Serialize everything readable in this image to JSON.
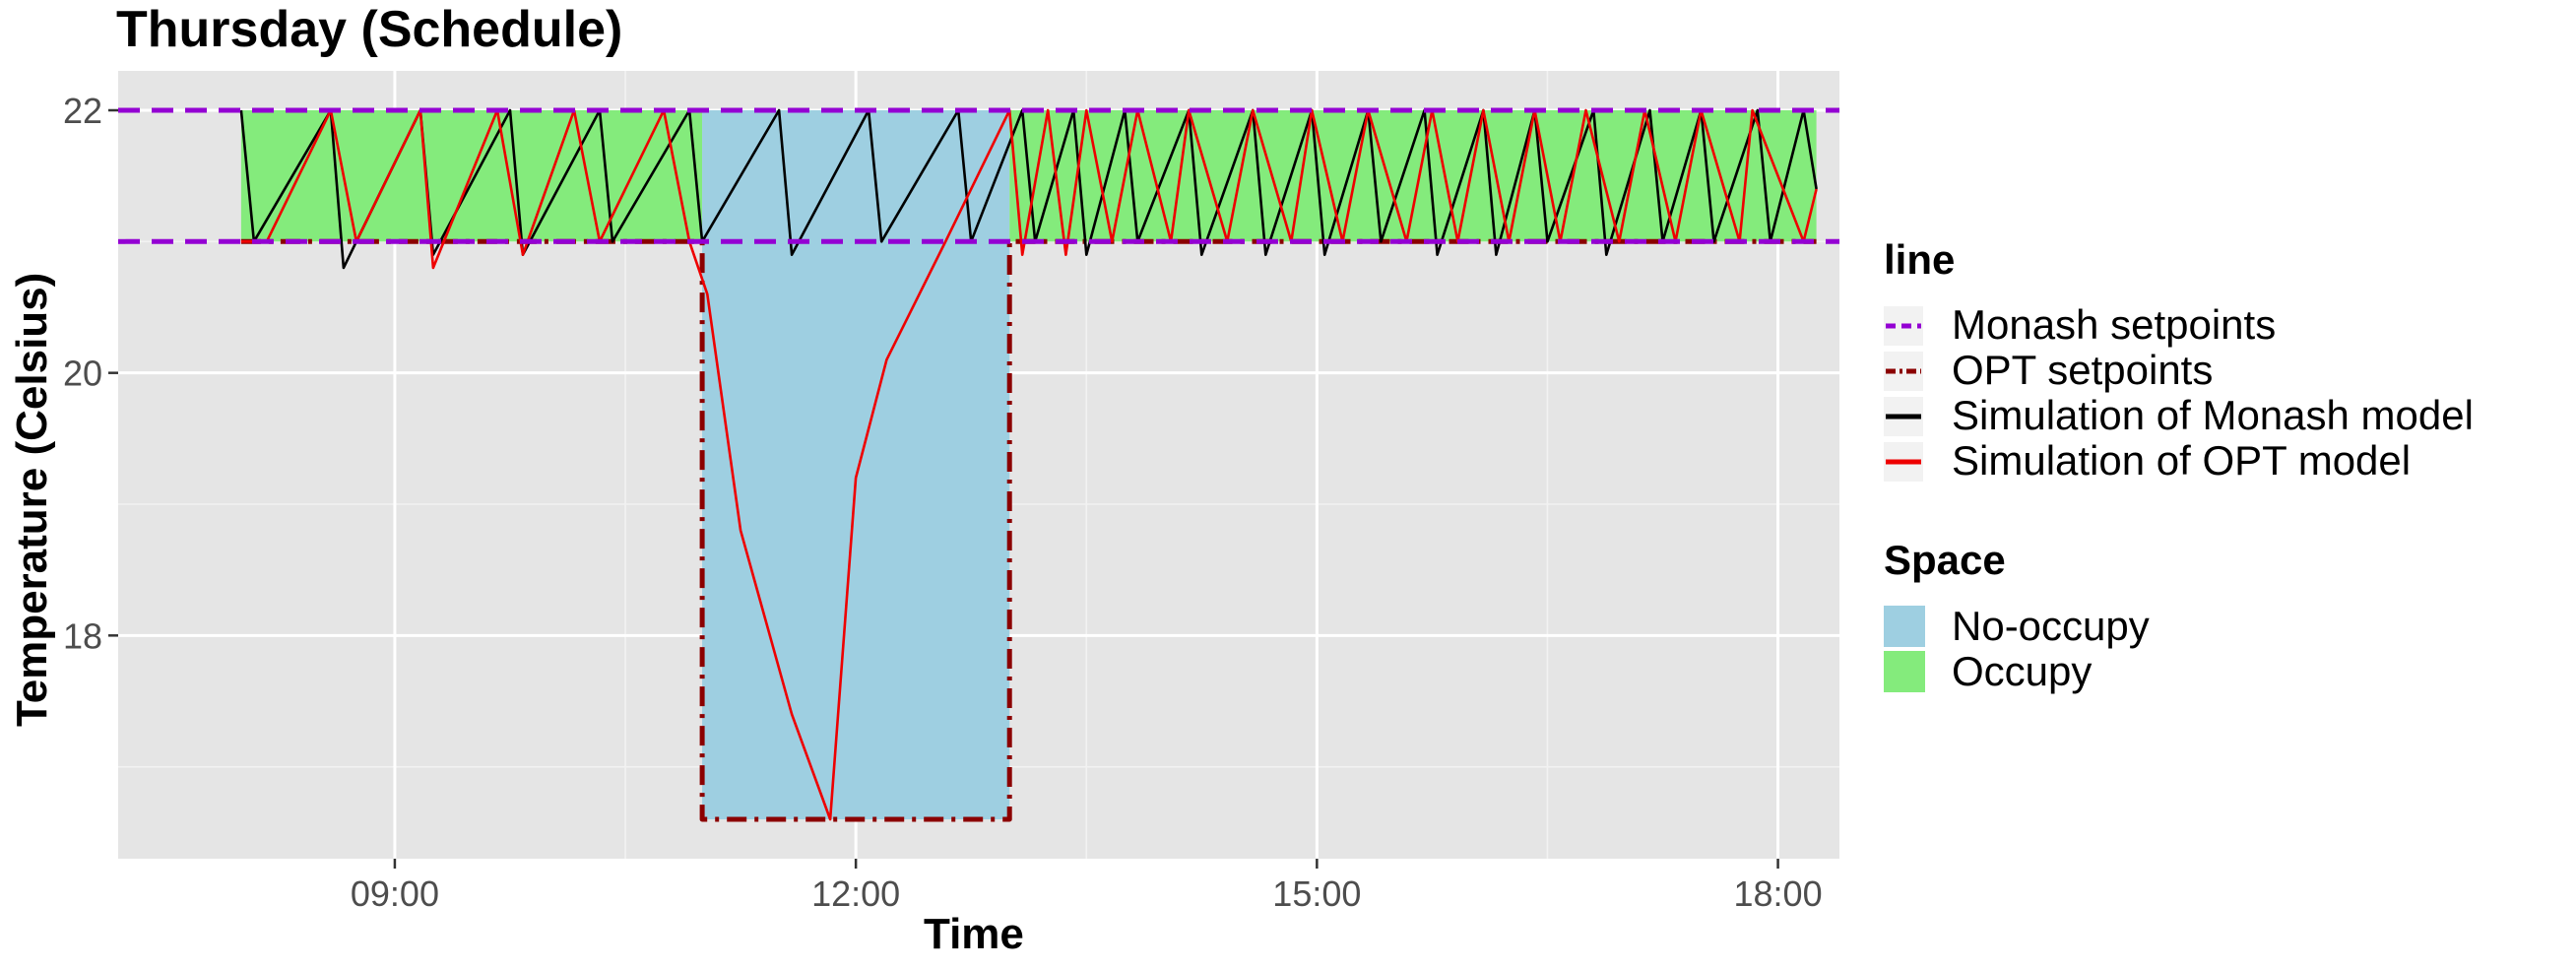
{
  "chart_data": {
    "type": "line",
    "title": "Thursday (Schedule)",
    "xlabel": "Time",
    "ylabel": "Temperature (Celsius)",
    "x_unit": "hours",
    "xlim": [
      "07:12",
      "18:24"
    ],
    "ylim": [
      16.3,
      22.3
    ],
    "x_ticks": [
      "09:00",
      "12:00",
      "15:00",
      "18:00"
    ],
    "y_ticks": [
      18,
      20,
      22
    ],
    "grid": true,
    "legend_position": "right",
    "legends": [
      {
        "title": "line",
        "entries": [
          {
            "label": "Monash setpoints",
            "color": "#9400d3",
            "style": "dashed"
          },
          {
            "label": "OPT setpoints",
            "color": "#8b0000",
            "style": "dotdash"
          },
          {
            "label": "Simulation of Monash model",
            "color": "#000000",
            "style": "solid"
          },
          {
            "label": "Simulation of OPT model",
            "color": "#ee0000",
            "style": "solid"
          }
        ]
      },
      {
        "title": "Space",
        "entries": [
          {
            "label": "No-occupy",
            "color": "#9ecfe1"
          },
          {
            "label": "Occupy",
            "color": "#84eb7c"
          }
        ]
      }
    ],
    "regions": [
      {
        "space": "Occupy",
        "x_start": "08:00",
        "x_end": "11:00",
        "y_min": 21,
        "y_max": 22
      },
      {
        "space": "No-occupy",
        "x_start": "11:00",
        "x_end": "13:00",
        "y_min": 16.6,
        "y_max": 22
      },
      {
        "space": "Occupy",
        "x_start": "13:00",
        "x_end": "18:15",
        "y_min": 21,
        "y_max": 22
      }
    ],
    "series": [
      {
        "name": "Monash setpoints",
        "segments": [
          {
            "x": [
              "07:12",
              "18:24"
            ],
            "y": [
              22,
              22
            ]
          },
          {
            "x": [
              "07:12",
              "18:24"
            ],
            "y": [
              21,
              21
            ]
          }
        ]
      },
      {
        "name": "OPT setpoints",
        "segments": [
          {
            "x": [
              "08:00",
              "11:00",
              "11:00",
              "13:00",
              "13:00",
              "18:15"
            ],
            "y": [
              21,
              21,
              16.6,
              16.6,
              21,
              21
            ]
          }
        ]
      },
      {
        "name": "Simulation of Monash model",
        "x": [
          "08:00",
          "08:05",
          "08:35",
          "08:40",
          "09:10",
          "09:15",
          "09:45",
          "09:50",
          "10:20",
          "10:25",
          "10:55",
          "11:00",
          "11:30",
          "11:35",
          "12:05",
          "12:10",
          "12:40",
          "12:45",
          "13:05",
          "13:10",
          "13:25",
          "13:30",
          "13:45",
          "13:50",
          "14:10",
          "14:15",
          "14:35",
          "14:40",
          "14:58",
          "15:03",
          "15:20",
          "15:25",
          "15:42",
          "15:47",
          "16:05",
          "16:10",
          "16:25",
          "16:30",
          "16:48",
          "16:53",
          "17:10",
          "17:15",
          "17:30",
          "17:35",
          "17:52",
          "17:57",
          "18:10",
          "18:15"
        ],
        "y": [
          22,
          21,
          22,
          20.8,
          22,
          20.9,
          22,
          20.9,
          22,
          21,
          22,
          21,
          22,
          20.9,
          22,
          21,
          22,
          21,
          22,
          21,
          22,
          20.9,
          22,
          21,
          22,
          20.9,
          22,
          20.9,
          22,
          20.9,
          22,
          21,
          22,
          20.9,
          22,
          20.9,
          22,
          21,
          22,
          20.9,
          22,
          21,
          22,
          21,
          22,
          21,
          22,
          21.4
        ]
      },
      {
        "name": "Simulation of OPT model",
        "x": [
          "08:00",
          "08:10",
          "08:35",
          "08:45",
          "09:10",
          "09:15",
          "09:40",
          "09:50",
          "10:10",
          "10:20",
          "10:45",
          "10:55",
          "11:02",
          "11:15",
          "11:35",
          "11:50",
          "12:00",
          "12:12",
          "12:35",
          "13:00",
          "13:05",
          "13:15",
          "13:22",
          "13:30",
          "13:40",
          "13:50",
          "14:03",
          "14:10",
          "14:25",
          "14:35",
          "14:50",
          "14:58",
          "15:10",
          "15:20",
          "15:35",
          "15:45",
          "15:55",
          "16:05",
          "16:15",
          "16:25",
          "16:35",
          "16:45",
          "16:58",
          "17:08",
          "17:20",
          "17:30",
          "17:45",
          "17:50",
          "18:10",
          "18:15"
        ],
        "y": [
          21,
          21,
          22,
          21,
          22,
          20.8,
          22,
          20.9,
          22,
          21,
          22,
          21,
          20.6,
          18.8,
          17.4,
          16.6,
          19.2,
          20.1,
          21,
          22,
          20.9,
          22,
          20.9,
          22,
          21,
          22,
          21,
          22,
          21,
          22,
          21,
          22,
          21,
          22,
          21,
          22,
          21,
          22,
          21,
          22,
          21,
          22,
          21,
          22,
          21,
          22,
          21,
          22,
          21,
          21.4
        ]
      }
    ]
  }
}
